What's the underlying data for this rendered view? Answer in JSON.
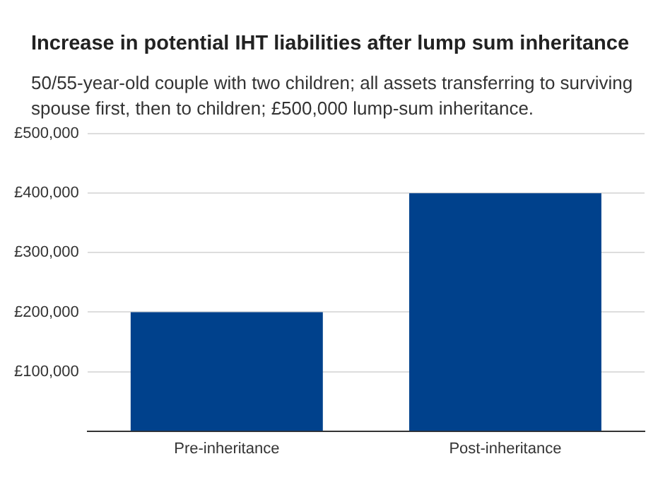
{
  "chart_data": {
    "type": "bar",
    "title": "Increase in potential IHT liabilities after lump sum inheritance",
    "subtitle": "50/55-year-old couple with two children; all assets transferring to surviving spouse first, then to children; £500,000 lump-sum inheritance.",
    "categories": [
      "Pre-inheritance",
      "Post-inheritance"
    ],
    "values": [
      200000,
      400000
    ],
    "color": "#00418c",
    "ylim": [
      0,
      500000
    ],
    "yticks": [
      {
        "value": 100000,
        "label": "£100,000"
      },
      {
        "value": 200000,
        "label": "£200,000"
      },
      {
        "value": 300000,
        "label": "£300,000"
      },
      {
        "value": 400000,
        "label": "£400,000"
      },
      {
        "value": 500000,
        "label": "£500,000"
      }
    ],
    "grid": "y"
  }
}
